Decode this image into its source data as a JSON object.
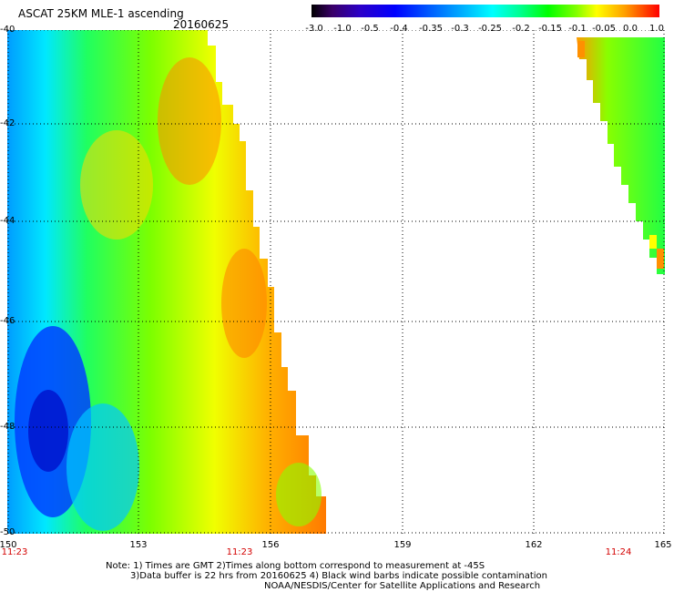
{
  "header": {
    "title": "ASCAT 25KM MLE-1 ascending",
    "date": "20160625"
  },
  "colorbar": {
    "ticks": [
      "-3.0",
      "-1.0",
      "-0.5",
      "-0.4",
      "-0.35",
      "-0.3",
      "-0.25",
      "-0.2",
      "-0.15",
      "-0.1",
      "-0.05",
      "0.0",
      "1.0"
    ]
  },
  "map": {
    "lat_labels": [
      "-40",
      "-42",
      "-44",
      "-46",
      "-48",
      "-50"
    ],
    "lon_labels": [
      "150",
      "153",
      "156",
      "159",
      "162",
      "165"
    ],
    "lat_range": [
      -50,
      -40
    ],
    "lon_range": [
      150,
      165
    ],
    "times": [
      "11:23",
      "11:23",
      "11:24"
    ],
    "colors": {
      "blue": "#0000ff",
      "cyan": "#00ffff",
      "green": "#00ff00",
      "yellow": "#ffff00",
      "orange": "#ff9000",
      "red": "#ff0000"
    }
  },
  "notes": {
    "line1": "Note: 1) Times are GMT 2)Times along bottom correspond to measurement at -45S",
    "line2": "3)Data buffer is 22 hrs from 20160625 4) Black wind barbs indicate possible contamination",
    "line3": "NOAA/NESDIS/Center for Satellite Applications and Research"
  }
}
